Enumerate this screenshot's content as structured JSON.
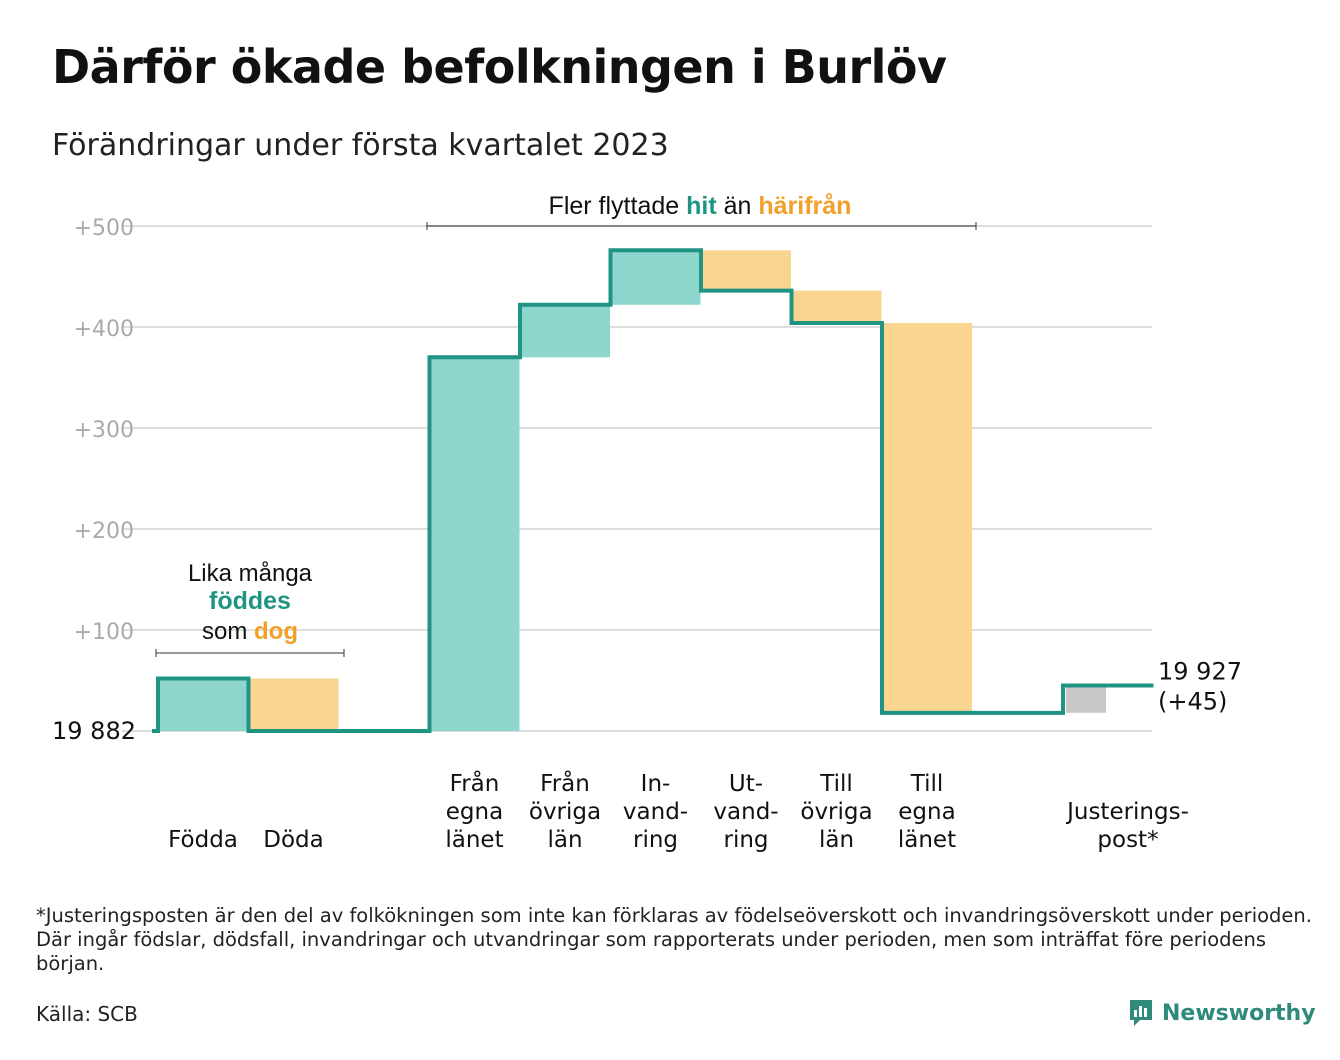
{
  "title": "Därför ökade befolkningen i Burlöv",
  "subtitle": "Förändringar under första kvartalet 2023",
  "chart_data": {
    "type": "waterfall",
    "base_value": 19882,
    "base_label": "19 882",
    "end_label_lines": [
      "19 927",
      "(+45)"
    ],
    "yticks": [
      {
        "value": 500,
        "label": "+500"
      },
      {
        "value": 400,
        "label": "+400"
      },
      {
        "value": 300,
        "label": "+300"
      },
      {
        "value": 200,
        "label": "+200"
      },
      {
        "value": 100,
        "label": "+100"
      }
    ],
    "ylim": [
      0,
      500
    ],
    "grid": true,
    "steps": [
      {
        "label_lines": [
          "Födda"
        ],
        "change": 52,
        "kind": "in"
      },
      {
        "label_lines": [
          "Döda"
        ],
        "change": -52,
        "kind": "out"
      },
      {
        "label_lines": [],
        "change": 0,
        "kind": "gap"
      },
      {
        "label_lines": [
          "Från",
          "egna",
          "länet"
        ],
        "change": 370,
        "kind": "in"
      },
      {
        "label_lines": [
          "Från",
          "övriga",
          "län"
        ],
        "change": 52,
        "kind": "in"
      },
      {
        "label_lines": [
          "In-",
          "vand-",
          "ring"
        ],
        "change": 54,
        "kind": "in"
      },
      {
        "label_lines": [
          "Ut-",
          "vand-",
          "ring"
        ],
        "change": -40,
        "kind": "out"
      },
      {
        "label_lines": [
          "Till",
          "övriga",
          "län"
        ],
        "change": -32,
        "kind": "out"
      },
      {
        "label_lines": [
          "Till",
          "egna",
          "länet"
        ],
        "change": -386,
        "kind": "out"
      },
      {
        "label_lines": [],
        "change": 0,
        "kind": "gap"
      },
      {
        "label_lines": [
          "Justerings-",
          "post*"
        ],
        "change": 27,
        "kind": "adjust"
      }
    ],
    "annotations": {
      "births": {
        "line1": "Lika många",
        "line2": "föddes",
        "line3_pre": "som ",
        "line3_em": "dog"
      },
      "migration": {
        "pre": "Fler flyttade ",
        "em1": "hit",
        "mid": " än ",
        "em2": "härifrån"
      }
    },
    "colors": {
      "in": "#8ed5cd",
      "out": "#f9d58f",
      "adjust": "#c8c8c8",
      "line": "#1f9483",
      "teal_text": "#1f9483",
      "orange_text": "#f2a02a",
      "grid": "#dddddd",
      "tick": "#aaaaaa"
    }
  },
  "footnote": "*Justeringsposten är den del av folkökningen som inte kan förklaras av födelseöverskott och invandringsöverskott under perioden. Där ingår födslar, dödsfall, invandringar och utvandringar som rapporterats under perioden, men som inträffat före periodens början.",
  "source": "Källa: SCB",
  "brand": {
    "name": "Newsworthy",
    "icon": "newsworthy-logo-icon"
  }
}
